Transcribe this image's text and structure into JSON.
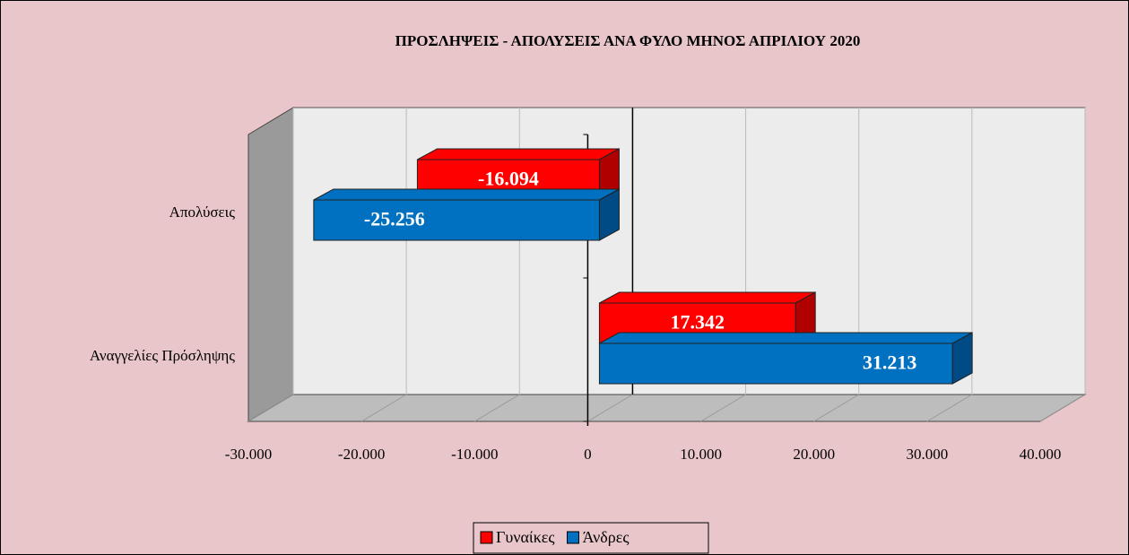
{
  "chart_data": {
    "type": "bar3d_horizontal",
    "title": "ΠΡΟΣΛΗΨΕΙΣ - ΑΠΟΛΥΣΕΙΣ ΑΝΑ ΦΥΛΟ ΜΗΝΟΣ  ΑΠΡΙΛΙΟΥ  2020",
    "categories": [
      "Απολύσεις",
      "Αναγγελίες Πρόσληψης"
    ],
    "series": [
      {
        "name": "Γυναίκες",
        "color": "#ff0000",
        "values": [
          -16094,
          17342
        ],
        "value_labels": [
          "-16.094",
          "17.342"
        ]
      },
      {
        "name": "Άνδρες",
        "color": "#0070c0",
        "values": [
          -25256,
          31213
        ],
        "value_labels": [
          "-25.256",
          "31.213"
        ]
      }
    ],
    "xlim": [
      -30000,
      40000
    ],
    "xticks": [
      {
        "value": -30000,
        "label": "-30.000"
      },
      {
        "value": -20000,
        "label": "-20.000"
      },
      {
        "value": -10000,
        "label": "-10.000"
      },
      0,
      {
        "value": 10000,
        "label": "10.000"
      },
      {
        "value": 20000,
        "label": "20.000"
      },
      {
        "value": 30000,
        "label": "30.000"
      },
      {
        "value": 40000,
        "label": "40.000"
      }
    ],
    "grid": true,
    "legend": "bottom"
  }
}
